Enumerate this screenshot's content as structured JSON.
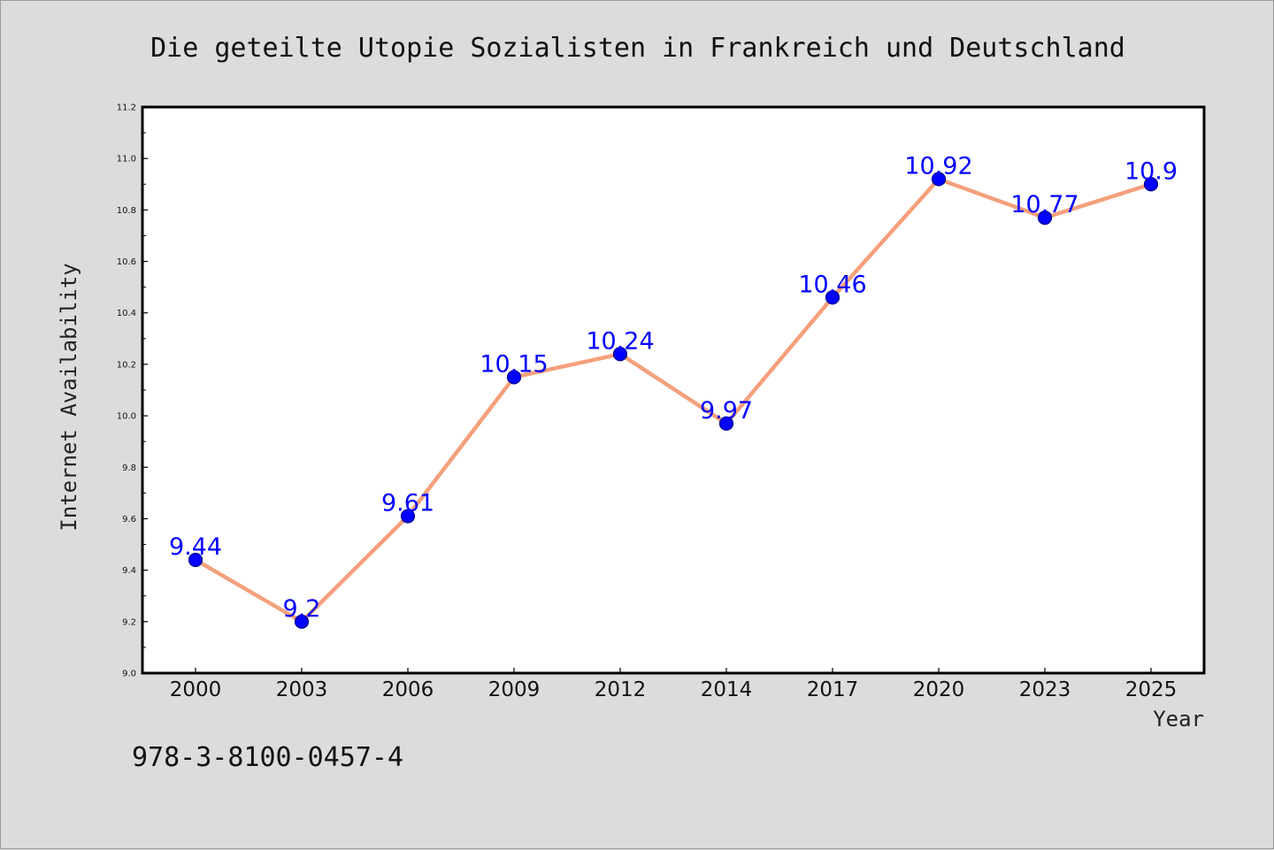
{
  "chart_data": {
    "type": "line",
    "title": "Die geteilte Utopie Sozialisten in Frankreich und Deutschland",
    "xlabel": "Year",
    "ylabel": "Internet Availability",
    "categories": [
      "2000",
      "2003",
      "2006",
      "2009",
      "2012",
      "2014",
      "2017",
      "2020",
      "2023",
      "2025"
    ],
    "series": [
      {
        "values": [
          9.44,
          9.2,
          9.61,
          10.15,
          10.24,
          9.97,
          10.46,
          10.92,
          10.77,
          10.9
        ],
        "labels": [
          "9.44",
          "9.2",
          "9.61",
          "10.15",
          "10.24",
          "9.97",
          "10.46",
          "10.92",
          "10.77",
          "10.9"
        ],
        "line_color": "#f4a07c",
        "marker_color": "#0000ff"
      }
    ],
    "ylim": [
      9.0,
      11.2
    ],
    "y_ticks": [
      "9.0",
      "9.2",
      "9.4",
      "9.6",
      "9.8",
      "10.0",
      "10.2",
      "10.4",
      "10.6",
      "10.8",
      "11.0",
      "11.2"
    ],
    "grid": false,
    "legend": "none"
  },
  "footnote": "978-3-8100-0457-4"
}
